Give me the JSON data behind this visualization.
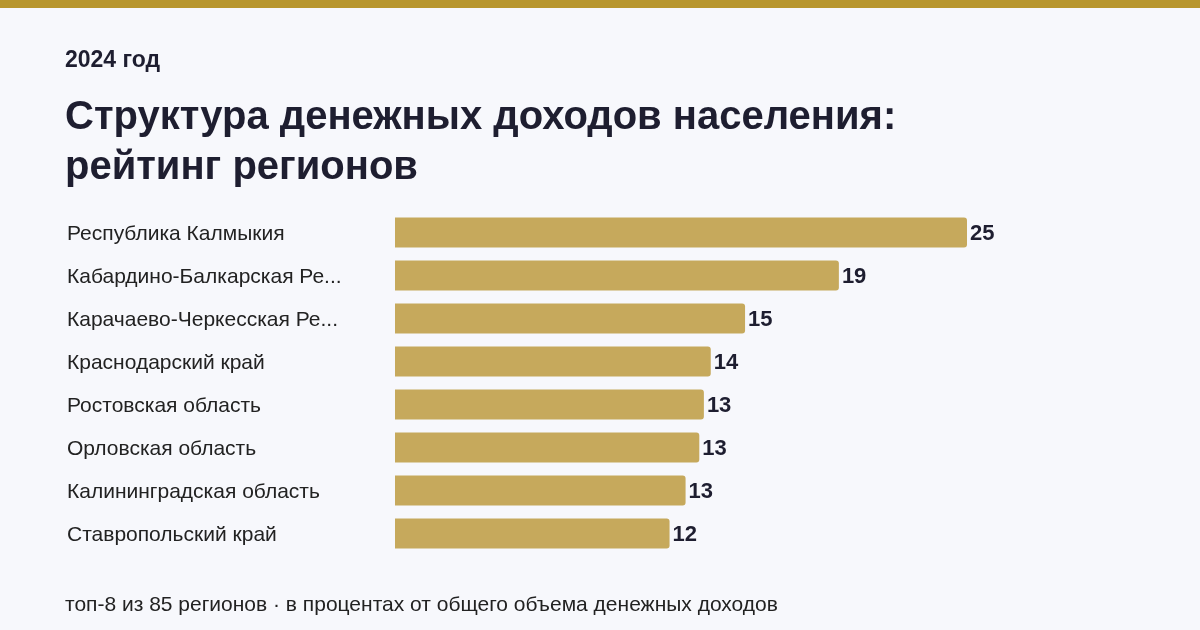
{
  "chart_data": {
    "type": "bar",
    "orientation": "horizontal",
    "title": "Структура денежных доходов населения: рейтинг регионов",
    "subtitle": "2024 год",
    "categories": [
      "Республика Калмыкия",
      "Кабардино-Балкарская Ре...",
      "Карачаево-Черкесская Ре...",
      "Краснодарский край",
      "Ростовская область",
      "Орловская область",
      "Калининградская область",
      "Ставропольский край"
    ],
    "values": [
      25,
      19.4,
      15.3,
      13.8,
      13.5,
      13.3,
      12.7,
      12
    ],
    "value_labels": [
      "25",
      "19",
      "15",
      "14",
      "13",
      "13",
      "13",
      "12"
    ],
    "color": "#c6a95c",
    "annotations": [
      "топ-8 из 85 регионов · в процентах от общего объема денежных доходов"
    ]
  }
}
